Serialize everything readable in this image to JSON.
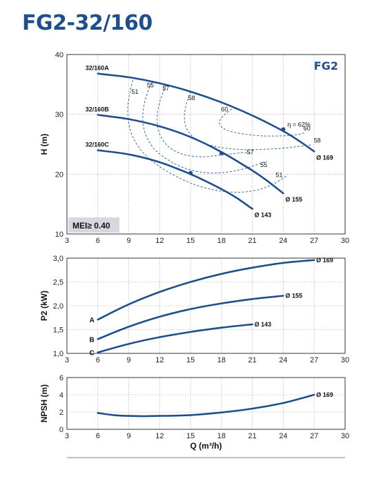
{
  "page_title": "FG2-32/160",
  "chart_data": [
    {
      "type": "line",
      "id": "h",
      "tag": "FG2",
      "badge": "MEI≥ 0.40",
      "xlabel": "",
      "ylabel": "H (m)",
      "xlim": [
        3,
        30
      ],
      "ylim": [
        10,
        40
      ],
      "x_ticks": [
        3,
        6,
        9,
        12,
        15,
        18,
        21,
        24,
        27,
        30
      ],
      "y_ticks": [
        10,
        20,
        30,
        40
      ],
      "grid": true,
      "series": [
        {
          "name": "32/160A",
          "end_label": "Ø 169",
          "x": [
            6,
            9,
            12,
            15,
            18,
            21,
            24,
            25.5,
            27
          ],
          "y": [
            36.8,
            36.2,
            35.2,
            33.8,
            32.0,
            29.8,
            27.2,
            25.6,
            23.8
          ]
        },
        {
          "name": "32/160B",
          "end_label": "Ø 155",
          "x": [
            6,
            9,
            12,
            15,
            18,
            21,
            22.5,
            24
          ],
          "y": [
            29.9,
            29.2,
            28.0,
            26.2,
            23.7,
            20.6,
            18.8,
            16.8
          ]
        },
        {
          "name": "32/160C",
          "end_label": "Ø 143",
          "x": [
            6,
            9,
            12,
            15,
            16.5,
            18,
            19.5,
            21
          ],
          "y": [
            24.0,
            23.3,
            22.0,
            20.0,
            18.8,
            17.5,
            16.0,
            14.2
          ]
        }
      ],
      "efficiency_curves": [
        {
          "label": "51",
          "label_at": [
            9.6,
            33.4
          ],
          "label2": "51",
          "label2_at": [
            23.6,
            19.5
          ],
          "x": [
            9.4,
            9.1,
            8.9,
            9.0,
            9.4,
            10.2,
            11.4,
            13.2,
            15.5,
            17.8,
            20.0,
            21.8,
            23.2,
            24.4
          ],
          "y": [
            35.7,
            33.5,
            31.0,
            28.5,
            26.2,
            24.0,
            22.0,
            20.0,
            18.2,
            17.2,
            17.0,
            17.5,
            18.5,
            19.8
          ]
        },
        {
          "label": "55",
          "label_at": [
            11.1,
            34.5
          ],
          "label2": "55",
          "label2_at": [
            22.1,
            21.2
          ],
          "x": [
            11.2,
            10.7,
            10.4,
            10.4,
            10.8,
            11.6,
            13.0,
            14.8,
            16.8,
            18.8,
            20.4,
            21.6,
            22.4
          ],
          "y": [
            35.2,
            33.0,
            30.6,
            28.2,
            26.0,
            24.0,
            22.2,
            20.8,
            20.2,
            20.4,
            21.0,
            21.7,
            22.2
          ]
        },
        {
          "label": "57",
          "label_at": [
            12.6,
            34.0
          ],
          "label2": "57",
          "label2_at": [
            20.8,
            23.3
          ],
          "x": [
            12.6,
            12.1,
            11.8,
            11.8,
            12.2,
            13.0,
            14.3,
            15.9,
            17.5,
            19.0,
            20.2,
            20.8
          ],
          "y": [
            34.8,
            32.6,
            30.3,
            28.0,
            26.0,
            24.4,
            23.3,
            22.9,
            23.1,
            23.4,
            23.6,
            23.5
          ]
        },
        {
          "label": "58",
          "label_at": [
            15.1,
            32.4
          ],
          "label2": "58",
          "label2_at": [
            27.3,
            25.3
          ],
          "x": [
            15.0,
            14.6,
            14.4,
            14.6,
            15.4,
            16.8,
            18.6,
            20.6,
            22.8,
            24.9,
            26.7
          ],
          "y": [
            33.8,
            31.8,
            29.7,
            27.7,
            26.0,
            24.9,
            24.3,
            24.1,
            24.2,
            24.5,
            24.9
          ]
        },
        {
          "label": "60",
          "label_at": [
            18.3,
            30.5
          ],
          "label2": "60",
          "label2_at": [
            26.3,
            27.3
          ],
          "x": [
            19.0,
            18.2,
            17.8,
            18.0,
            18.8,
            20.2,
            22.0,
            23.8,
            25.3,
            26.2
          ],
          "y": [
            30.9,
            29.8,
            28.8,
            27.9,
            27.2,
            26.7,
            26.4,
            26.4,
            26.6,
            27.0
          ]
        }
      ],
      "eta_label": "η = 62%",
      "eta_point": [
        24.0,
        27.5
      ],
      "dots": [
        [
          24.0,
          27.5
        ],
        [
          18.0,
          23.5
        ],
        [
          15.0,
          20.2
        ]
      ]
    },
    {
      "type": "line",
      "id": "p2",
      "xlabel": "",
      "ylabel": "P2 (kW)",
      "xlim": [
        3,
        30
      ],
      "ylim": [
        1.0,
        3.0
      ],
      "x_ticks": [
        3,
        6,
        9,
        12,
        15,
        18,
        21,
        24,
        27,
        30
      ],
      "y_ticks": [
        1.0,
        1.5,
        2.0,
        2.5,
        3.0
      ],
      "y_tick_labels": [
        "1,0",
        "1,5",
        "2,0",
        "2,5",
        "3,0"
      ],
      "grid": true,
      "series": [
        {
          "name": "A",
          "end_label": "Ø 169",
          "x": [
            6,
            9,
            12,
            15,
            18,
            21,
            24,
            27
          ],
          "y": [
            1.71,
            2.03,
            2.29,
            2.5,
            2.67,
            2.8,
            2.9,
            2.96
          ]
        },
        {
          "name": "B",
          "end_label": "Ø 155",
          "x": [
            6,
            9,
            12,
            15,
            18,
            21,
            24
          ],
          "y": [
            1.3,
            1.56,
            1.77,
            1.93,
            2.05,
            2.14,
            2.21
          ]
        },
        {
          "name": "C",
          "end_label": "Ø 143",
          "x": [
            6,
            9,
            12,
            15,
            18,
            21
          ],
          "y": [
            1.02,
            1.2,
            1.34,
            1.45,
            1.54,
            1.61
          ]
        }
      ]
    },
    {
      "type": "line",
      "id": "npsh",
      "xlabel": "Q (m³/h)",
      "ylabel": "NPSH (m)",
      "xlim": [
        3,
        30
      ],
      "ylim": [
        0,
        6
      ],
      "x_ticks": [
        3,
        6,
        9,
        12,
        15,
        18,
        21,
        24,
        27,
        30
      ],
      "y_ticks": [
        0,
        2,
        4,
        6
      ],
      "grid": true,
      "series": [
        {
          "name": "",
          "end_label": "Ø 169",
          "x": [
            6,
            7.5,
            9,
            10.5,
            12,
            15,
            18,
            21,
            24,
            27
          ],
          "y": [
            1.9,
            1.65,
            1.55,
            1.52,
            1.55,
            1.65,
            1.95,
            2.4,
            3.05,
            4.0
          ]
        }
      ]
    }
  ]
}
